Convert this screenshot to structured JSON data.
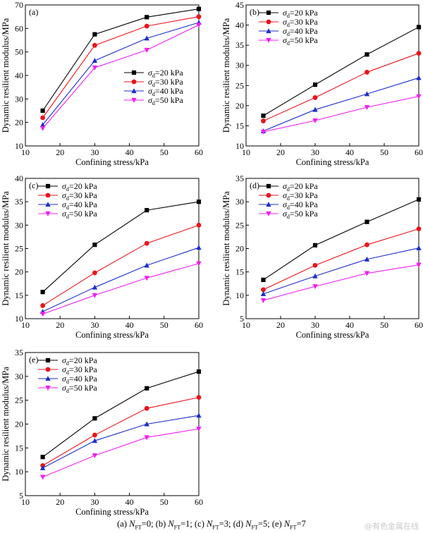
{
  "figure": {
    "caption": [
      {
        "label": "(a) ",
        "var": "N",
        "sub": "FT",
        "value": "=0; "
      },
      {
        "label": "(b) ",
        "var": "N",
        "sub": "FT",
        "value": "=1; "
      },
      {
        "label": "(c) ",
        "var": "N",
        "sub": "FT",
        "value": "=3; "
      },
      {
        "label": "(d) ",
        "var": "N",
        "sub": "FT",
        "value": "=5; "
      },
      {
        "label": "(e) ",
        "var": "N",
        "sub": "FT",
        "value": "=7"
      }
    ],
    "watermark": "@有色金属在线"
  },
  "chart_data": [
    {
      "type": "line",
      "panel_label": "(a)",
      "xlabel": "Confining stress/kPa",
      "ylabel": "Dynamic resilient modulus/MPa",
      "xlim": [
        10,
        60
      ],
      "ylim": [
        10,
        70
      ],
      "xticks": [
        10,
        20,
        30,
        40,
        50,
        60
      ],
      "yticks": [
        10,
        20,
        30,
        40,
        50,
        60,
        70
      ],
      "legend_position": "bottom-right",
      "x": [
        15,
        30,
        45,
        60
      ],
      "series": [
        {
          "name": "σd=20 kPa",
          "values": [
            25.0,
            57.5,
            64.8,
            68.3
          ]
        },
        {
          "name": "σd=30 kPa",
          "values": [
            22.0,
            52.8,
            61.0,
            65.0
          ]
        },
        {
          "name": "σd=40 kPa",
          "values": [
            19.0,
            46.3,
            55.8,
            62.5
          ]
        },
        {
          "name": "σd=50 kPa",
          "values": [
            17.5,
            43.3,
            50.8,
            61.5
          ]
        }
      ]
    },
    {
      "type": "line",
      "panel_label": "(b)",
      "xlabel": "Confining stress/kPa",
      "ylabel": "Dynamic resilient modulus/MPa",
      "xlim": [
        10,
        60
      ],
      "ylim": [
        10,
        45
      ],
      "xticks": [
        10,
        20,
        30,
        40,
        50,
        60
      ],
      "yticks": [
        10,
        15,
        20,
        25,
        30,
        35,
        40,
        45
      ],
      "legend_position": "top-left",
      "x": [
        15,
        30,
        45,
        60
      ],
      "series": [
        {
          "name": "σd=20 kPa",
          "values": [
            17.5,
            25.2,
            32.7,
            39.5
          ]
        },
        {
          "name": "σd=30 kPa",
          "values": [
            16.2,
            22.0,
            28.3,
            33.0
          ]
        },
        {
          "name": "σd=40 kPa",
          "values": [
            13.7,
            19.0,
            22.9,
            26.9
          ]
        },
        {
          "name": "σd=50 kPa",
          "values": [
            13.5,
            16.3,
            19.6,
            22.3
          ]
        }
      ]
    },
    {
      "type": "line",
      "panel_label": "(c)",
      "xlabel": "Confining stress/kPa",
      "ylabel": "Dynamic resilient modulus/MPa",
      "xlim": [
        10,
        60
      ],
      "ylim": [
        10,
        40
      ],
      "xticks": [
        10,
        20,
        30,
        40,
        50,
        60
      ],
      "yticks": [
        10,
        15,
        20,
        25,
        30,
        35,
        40
      ],
      "legend_position": "top-left",
      "x": [
        15,
        30,
        45,
        60
      ],
      "series": [
        {
          "name": "σd=20 kPa",
          "values": [
            15.7,
            25.8,
            33.2,
            35.0
          ]
        },
        {
          "name": "σd=30 kPa",
          "values": [
            12.8,
            19.8,
            26.1,
            30.0
          ]
        },
        {
          "name": "σd=40 kPa",
          "values": [
            11.5,
            16.7,
            21.4,
            25.2
          ]
        },
        {
          "name": "σd=50 kPa",
          "values": [
            11.0,
            15.0,
            18.7,
            21.8
          ]
        }
      ]
    },
    {
      "type": "line",
      "panel_label": "(d)",
      "xlabel": "Confining stress/kPa",
      "ylabel": "Dynamic resilient modulus/MPa",
      "xlim": [
        10,
        60
      ],
      "ylim": [
        5,
        35
      ],
      "xticks": [
        10,
        20,
        30,
        40,
        50,
        60
      ],
      "yticks": [
        5,
        10,
        15,
        20,
        25,
        30,
        35
      ],
      "legend_position": "top-left",
      "x": [
        15,
        30,
        45,
        60
      ],
      "series": [
        {
          "name": "σd=20 kPa",
          "values": [
            13.3,
            20.7,
            25.7,
            30.5
          ]
        },
        {
          "name": "σd=30 kPa",
          "values": [
            11.2,
            16.4,
            20.8,
            24.2
          ]
        },
        {
          "name": "σd=40 kPa",
          "values": [
            10.3,
            14.1,
            17.7,
            20.1
          ]
        },
        {
          "name": "σd=50 kPa",
          "values": [
            8.9,
            11.9,
            14.7,
            16.5
          ]
        }
      ]
    },
    {
      "type": "line",
      "panel_label": "(e)",
      "xlabel": "Confining stress/kPa",
      "ylabel": "Dynamic resilient modulus/MPa",
      "xlim": [
        10,
        60
      ],
      "ylim": [
        5,
        35
      ],
      "xticks": [
        10,
        20,
        30,
        40,
        50,
        60
      ],
      "yticks": [
        5,
        10,
        15,
        20,
        25,
        30,
        35
      ],
      "legend_position": "top-left",
      "x": [
        15,
        30,
        45,
        60
      ],
      "series": [
        {
          "name": "σd=20 kPa",
          "values": [
            13.1,
            21.2,
            27.5,
            31.0
          ]
        },
        {
          "name": "σd=30 kPa",
          "values": [
            11.3,
            17.7,
            23.3,
            25.6
          ]
        },
        {
          "name": "σd=40 kPa",
          "values": [
            10.8,
            16.5,
            20.0,
            21.8
          ]
        },
        {
          "name": "σd=50 kPa",
          "values": [
            8.9,
            13.4,
            17.2,
            19.0
          ]
        }
      ]
    }
  ],
  "series_style": [
    {
      "color": "#000000",
      "marker": "square"
    },
    {
      "color": "#e8141c",
      "marker": "circle"
    },
    {
      "color": "#1c2ec8",
      "marker": "triangle-up"
    },
    {
      "color": "#ef1ff0",
      "marker": "triangle-down"
    }
  ]
}
